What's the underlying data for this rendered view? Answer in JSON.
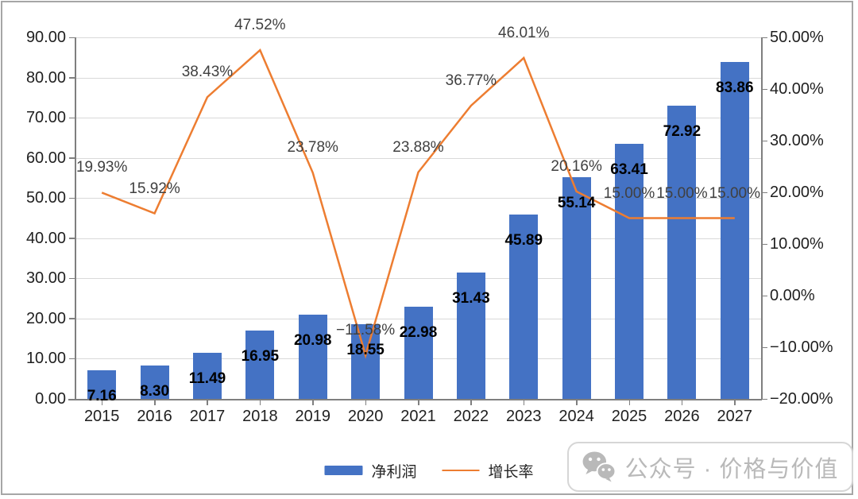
{
  "chart_data": {
    "type": "bar-line-combo",
    "title": "",
    "xlabel": "",
    "ylabel": "",
    "grid": "horizontal",
    "legend_position": "bottom",
    "categories": [
      "2015",
      "2016",
      "2017",
      "2018",
      "2019",
      "2020",
      "2021",
      "2022",
      "2023",
      "2024",
      "2025",
      "2026",
      "2027"
    ],
    "series": [
      {
        "name": "净利润",
        "type": "bar",
        "axis": "left",
        "values": [
          7.16,
          8.3,
          11.49,
          16.95,
          20.98,
          18.55,
          22.98,
          31.43,
          45.89,
          55.14,
          63.41,
          72.92,
          83.86
        ],
        "labels": [
          "7.16",
          "8.30",
          "11.49",
          "16.95",
          "20.98",
          "18.55",
          "22.98",
          "31.43",
          "45.89",
          "55.14",
          "63.41",
          "72.92",
          "83.86"
        ]
      },
      {
        "name": "增长率",
        "type": "line",
        "axis": "right",
        "values": [
          19.93,
          15.92,
          38.43,
          47.52,
          23.78,
          -11.58,
          23.88,
          36.77,
          46.01,
          20.16,
          15.0,
          15.0,
          15.0
        ],
        "labels": [
          "19.93%",
          "15.92%",
          "38.43%",
          "47.52%",
          "23.78%",
          "−11.58%",
          "23.88%",
          "36.77%",
          "46.01%",
          "20.16%",
          "15.00%",
          "15.00%",
          "15.00%"
        ]
      }
    ],
    "left_axis": {
      "min": 0,
      "max": 90,
      "step": 10,
      "labels": [
        "90.00",
        "80.00",
        "70.00",
        "60.00",
        "50.00",
        "40.00",
        "30.00",
        "20.00",
        "10.00",
        "0.00"
      ]
    },
    "right_axis": {
      "min": -20,
      "max": 50,
      "step": 10,
      "labels": [
        "50.00%",
        "40.00%",
        "30.00%",
        "20.00%",
        "10.00%",
        "0.00%",
        "−10.00%",
        "−20.00%"
      ]
    }
  },
  "legend": {
    "items": [
      {
        "label": "净利润",
        "swatch": "bar"
      },
      {
        "label": "增长率",
        "swatch": "line"
      }
    ]
  },
  "watermark": {
    "text": "公众号 · 价格与价值",
    "icon": "wechat-icon"
  },
  "colors": {
    "bar": "#4472C4",
    "line": "#ED7D31",
    "grid": "#D9D9D9",
    "axis": "#7F7F7F",
    "axis_label": "#1F1F1F",
    "bar_label": "#000000",
    "line_label": "#404040",
    "watermark": "#B9B9B9",
    "frame": "#A6A6A6"
  }
}
